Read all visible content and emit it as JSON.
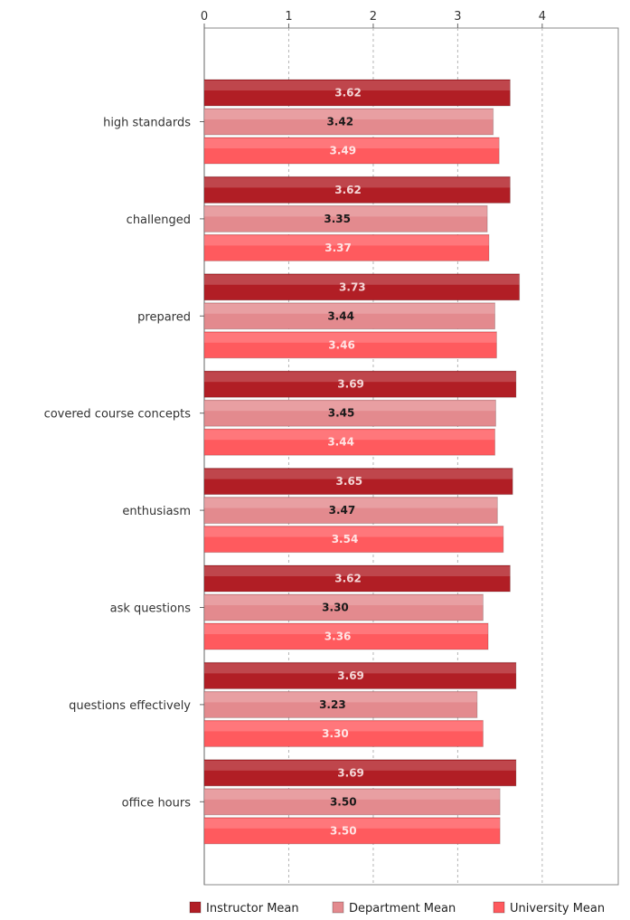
{
  "chart_data": {
    "type": "bar",
    "orientation": "horizontal",
    "title": "",
    "xlabel": "",
    "ylabel": "",
    "xlim": [
      0,
      4.9
    ],
    "xticks": [
      "0",
      "1",
      "2",
      "3",
      "4"
    ],
    "grid": true,
    "legend_position": "bottom-right",
    "categories": [
      "high standards",
      "challenged",
      "prepared",
      "covered course concepts",
      "enthusiasm",
      "ask questions",
      "questions effectively",
      "office hours"
    ],
    "series": [
      {
        "name": "Instructor Mean",
        "color": "#b11e25",
        "label_color": "#f4d6d6",
        "values": [
          3.62,
          3.62,
          3.73,
          3.69,
          3.65,
          3.62,
          3.69,
          3.69
        ],
        "labels": [
          "3.62",
          "3.62",
          "3.73",
          "3.69",
          "3.65",
          "3.62",
          "3.69",
          "3.69"
        ]
      },
      {
        "name": "Department Mean",
        "color": "#e38a8e",
        "label_color": "#1a1a1a",
        "values": [
          3.42,
          3.35,
          3.44,
          3.45,
          3.47,
          3.3,
          3.23,
          3.5
        ],
        "labels": [
          "3.42",
          "3.35",
          "3.44",
          "3.45",
          "3.47",
          "3.30",
          "3.23",
          "3.50"
        ]
      },
      {
        "name": "University Mean",
        "color": "#ff5a5e",
        "label_color": "#ffe4e4",
        "values": [
          3.49,
          3.37,
          3.46,
          3.44,
          3.54,
          3.36,
          3.3,
          3.5
        ],
        "labels": [
          "3.49",
          "3.37",
          "3.46",
          "3.44",
          "3.54",
          "3.36",
          "3.30",
          "3.50"
        ]
      }
    ]
  }
}
